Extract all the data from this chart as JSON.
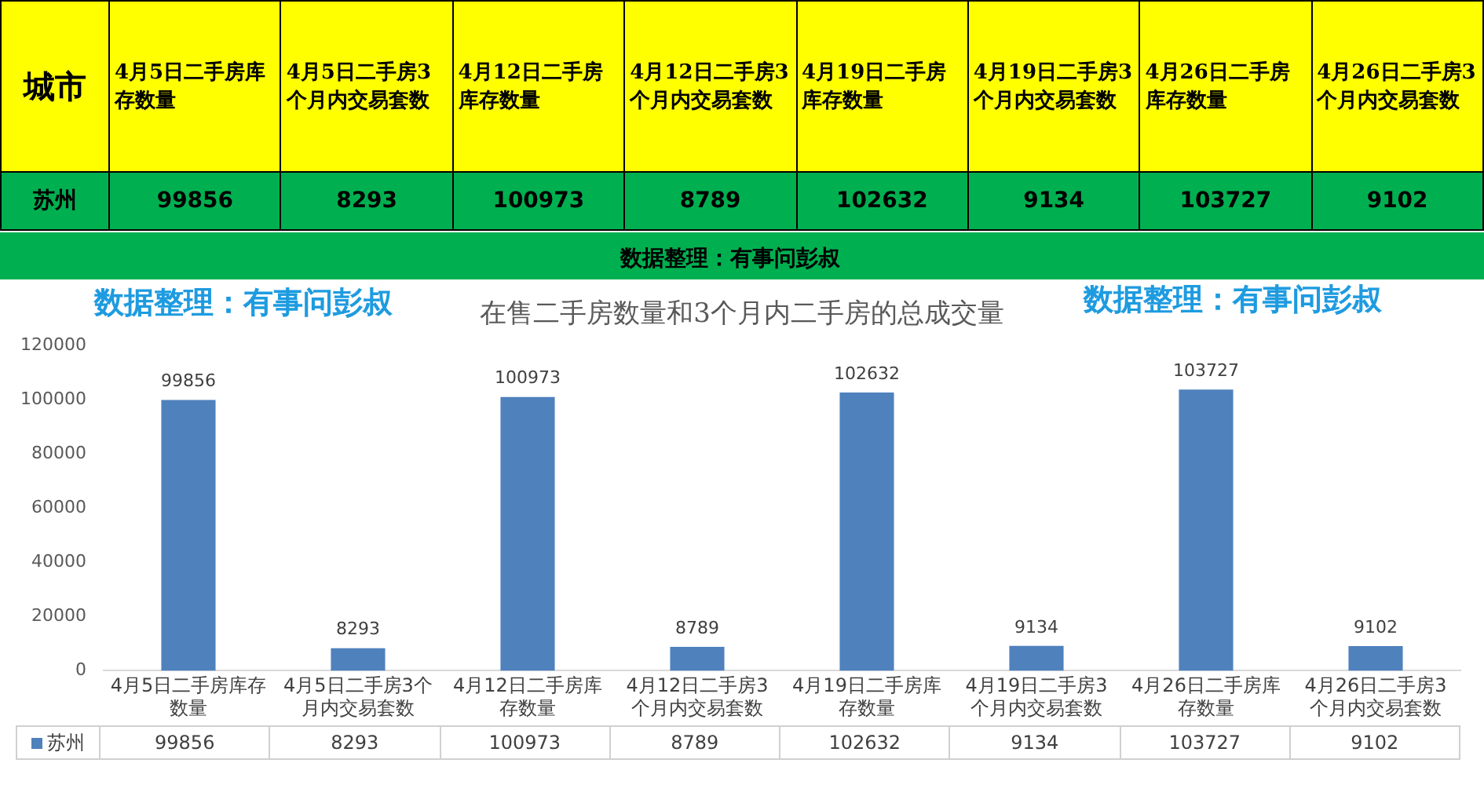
{
  "chart_data": {
    "type": "bar",
    "title": "在售二手房数量和3个月内二手房的总成交量",
    "categories": [
      "4月5日二手房库存数量",
      "4月5日二手房3个月内交易套数",
      "4月12日二手房库存数量",
      "4月12日二手房3个月内交易套数",
      "4月19日二手房库存数量",
      "4月19日二手房3个月内交易套数",
      "4月26日二手房库存数量",
      "4月26日二手房3个月内交易套数"
    ],
    "series": [
      {
        "name": "苏州",
        "color": "#4f81bd",
        "values": [
          99856,
          8293,
          100973,
          8789,
          102632,
          9134,
          103727,
          9102
        ],
        "value_labels": [
          "99856",
          "8293",
          "100973",
          "8789",
          "102632",
          "9134",
          "103727",
          "9102"
        ]
      }
    ],
    "ylim": [
      0,
      120000
    ],
    "yticks": [
      0,
      20000,
      40000,
      60000,
      80000,
      100000,
      120000
    ],
    "grid": false,
    "legend": "bottom",
    "annotations": [
      "城市",
      "数据整理：有事问彭叔",
      "数据整理：有事问彭叔",
      "数据整理：有事问彭叔"
    ]
  }
}
